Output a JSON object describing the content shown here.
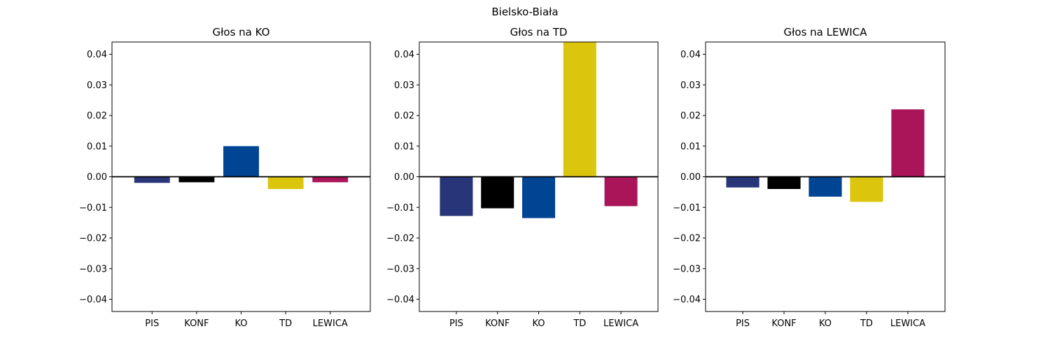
{
  "figure": {
    "suptitle": "Bielsko-Biała"
  },
  "chart_data": [
    {
      "type": "bar",
      "title": "Głos na KO",
      "categories": [
        "PIS",
        "KONF",
        "KO",
        "TD",
        "LEWICA"
      ],
      "values": [
        -0.002,
        -0.0018,
        0.01,
        -0.004,
        -0.0018
      ],
      "colors": [
        "#283578",
        "#000000",
        "#004494",
        "#dcc50d",
        "#aa1459"
      ],
      "ylim": [
        -0.044,
        0.044
      ],
      "yticks": [
        -0.04,
        -0.03,
        -0.02,
        -0.01,
        0.0,
        0.01,
        0.02,
        0.03,
        0.04
      ],
      "ytick_labels": [
        "−0.04",
        "−0.03",
        "−0.02",
        "−0.01",
        "0.00",
        "0.01",
        "0.02",
        "0.03",
        "0.04"
      ],
      "zero_line": true,
      "grid": false
    },
    {
      "type": "bar",
      "title": "Głos na TD",
      "categories": [
        "PIS",
        "KONF",
        "KO",
        "TD",
        "LEWICA"
      ],
      "values": [
        -0.0128,
        -0.0103,
        -0.0135,
        0.044,
        -0.0096
      ],
      "colors": [
        "#283578",
        "#000000",
        "#004494",
        "#dcc50d",
        "#aa1459"
      ],
      "ylim": [
        -0.044,
        0.044
      ],
      "yticks": [
        -0.04,
        -0.03,
        -0.02,
        -0.01,
        0.0,
        0.01,
        0.02,
        0.03,
        0.04
      ],
      "ytick_labels": [
        "−0.04",
        "−0.03",
        "−0.02",
        "−0.01",
        "0.00",
        "0.01",
        "0.02",
        "0.03",
        "0.04"
      ],
      "zero_line": true,
      "grid": false
    },
    {
      "type": "bar",
      "title": "Głos na LEWICA",
      "categories": [
        "PIS",
        "KONF",
        "KO",
        "TD",
        "LEWICA"
      ],
      "values": [
        -0.0035,
        -0.004,
        -0.0065,
        -0.0082,
        0.022
      ],
      "colors": [
        "#283578",
        "#000000",
        "#004494",
        "#dcc50d",
        "#aa1459"
      ],
      "ylim": [
        -0.044,
        0.044
      ],
      "yticks": [
        -0.04,
        -0.03,
        -0.02,
        -0.01,
        0.0,
        0.01,
        0.02,
        0.03,
        0.04
      ],
      "ytick_labels": [
        "−0.04",
        "−0.03",
        "−0.02",
        "−0.01",
        "0.00",
        "0.01",
        "0.02",
        "0.03",
        "0.04"
      ],
      "zero_line": true,
      "grid": false
    }
  ]
}
